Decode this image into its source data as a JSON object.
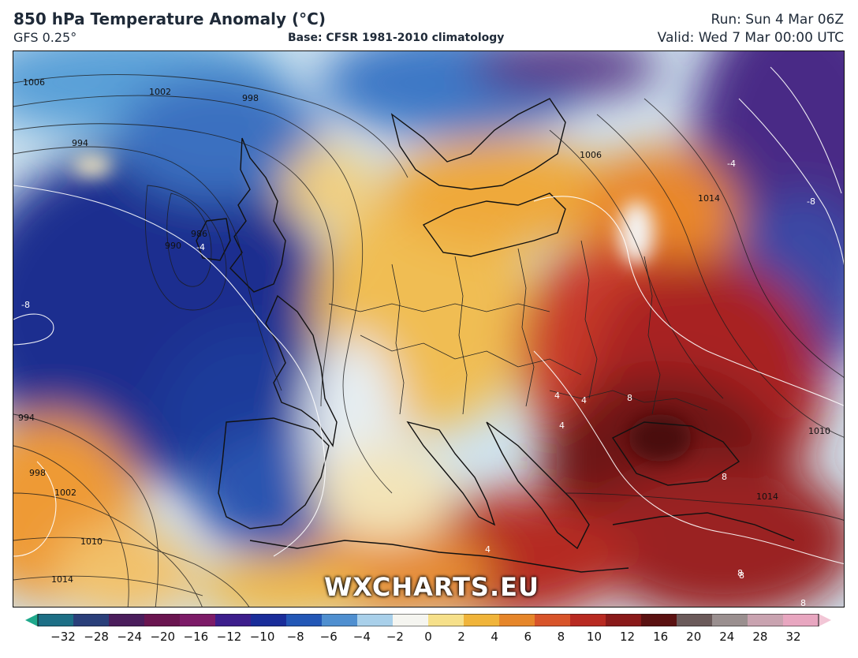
{
  "header": {
    "title": "850 hPa Temperature Anomaly (°C)",
    "model": "GFS 0.25°",
    "base": "Base: CFSR 1981-2010 climatology",
    "run": "Run: Sun 4 Mar 06Z",
    "valid": "Valid: Wed 7 Mar 00:00 UTC"
  },
  "watermark": "WXCHARTS.EU",
  "colorbar": {
    "ticks": [
      "−32",
      "−28",
      "−24",
      "−20",
      "−16",
      "−12",
      "−10",
      "−8",
      "−6",
      "−4",
      "−2",
      "0",
      "2",
      "4",
      "6",
      "8",
      "10",
      "12",
      "16",
      "20",
      "24",
      "28",
      "32"
    ],
    "colors": [
      "#1fa98c",
      "#1d6f86",
      "#2a3f7a",
      "#4b1d5c",
      "#6a1550",
      "#7d1b68",
      "#3d1e8c",
      "#1a2d9a",
      "#2357b6",
      "#4f8fd0",
      "#a9d0ea",
      "#f5f5f0",
      "#f6e08a",
      "#f0b43a",
      "#e6862a",
      "#d8542a",
      "#b82a22",
      "#8a1a1a",
      "#5b1212",
      "#6b5a5a",
      "#9a8f8f",
      "#c9a3b0",
      "#e8a6c0",
      "#f2c6d6"
    ]
  },
  "isobar_labels": [
    "1006",
    "1002",
    "998",
    "994",
    "986",
    "990",
    "1014",
    "1010",
    "1002",
    "998",
    "994",
    "1014",
    "1006",
    "1014",
    "1010"
  ],
  "isotherm_labels": [
    "-4",
    "-8",
    "-4",
    "-8",
    "4",
    "4",
    "4",
    "8",
    "8",
    "4",
    "8",
    "8",
    "8"
  ]
}
